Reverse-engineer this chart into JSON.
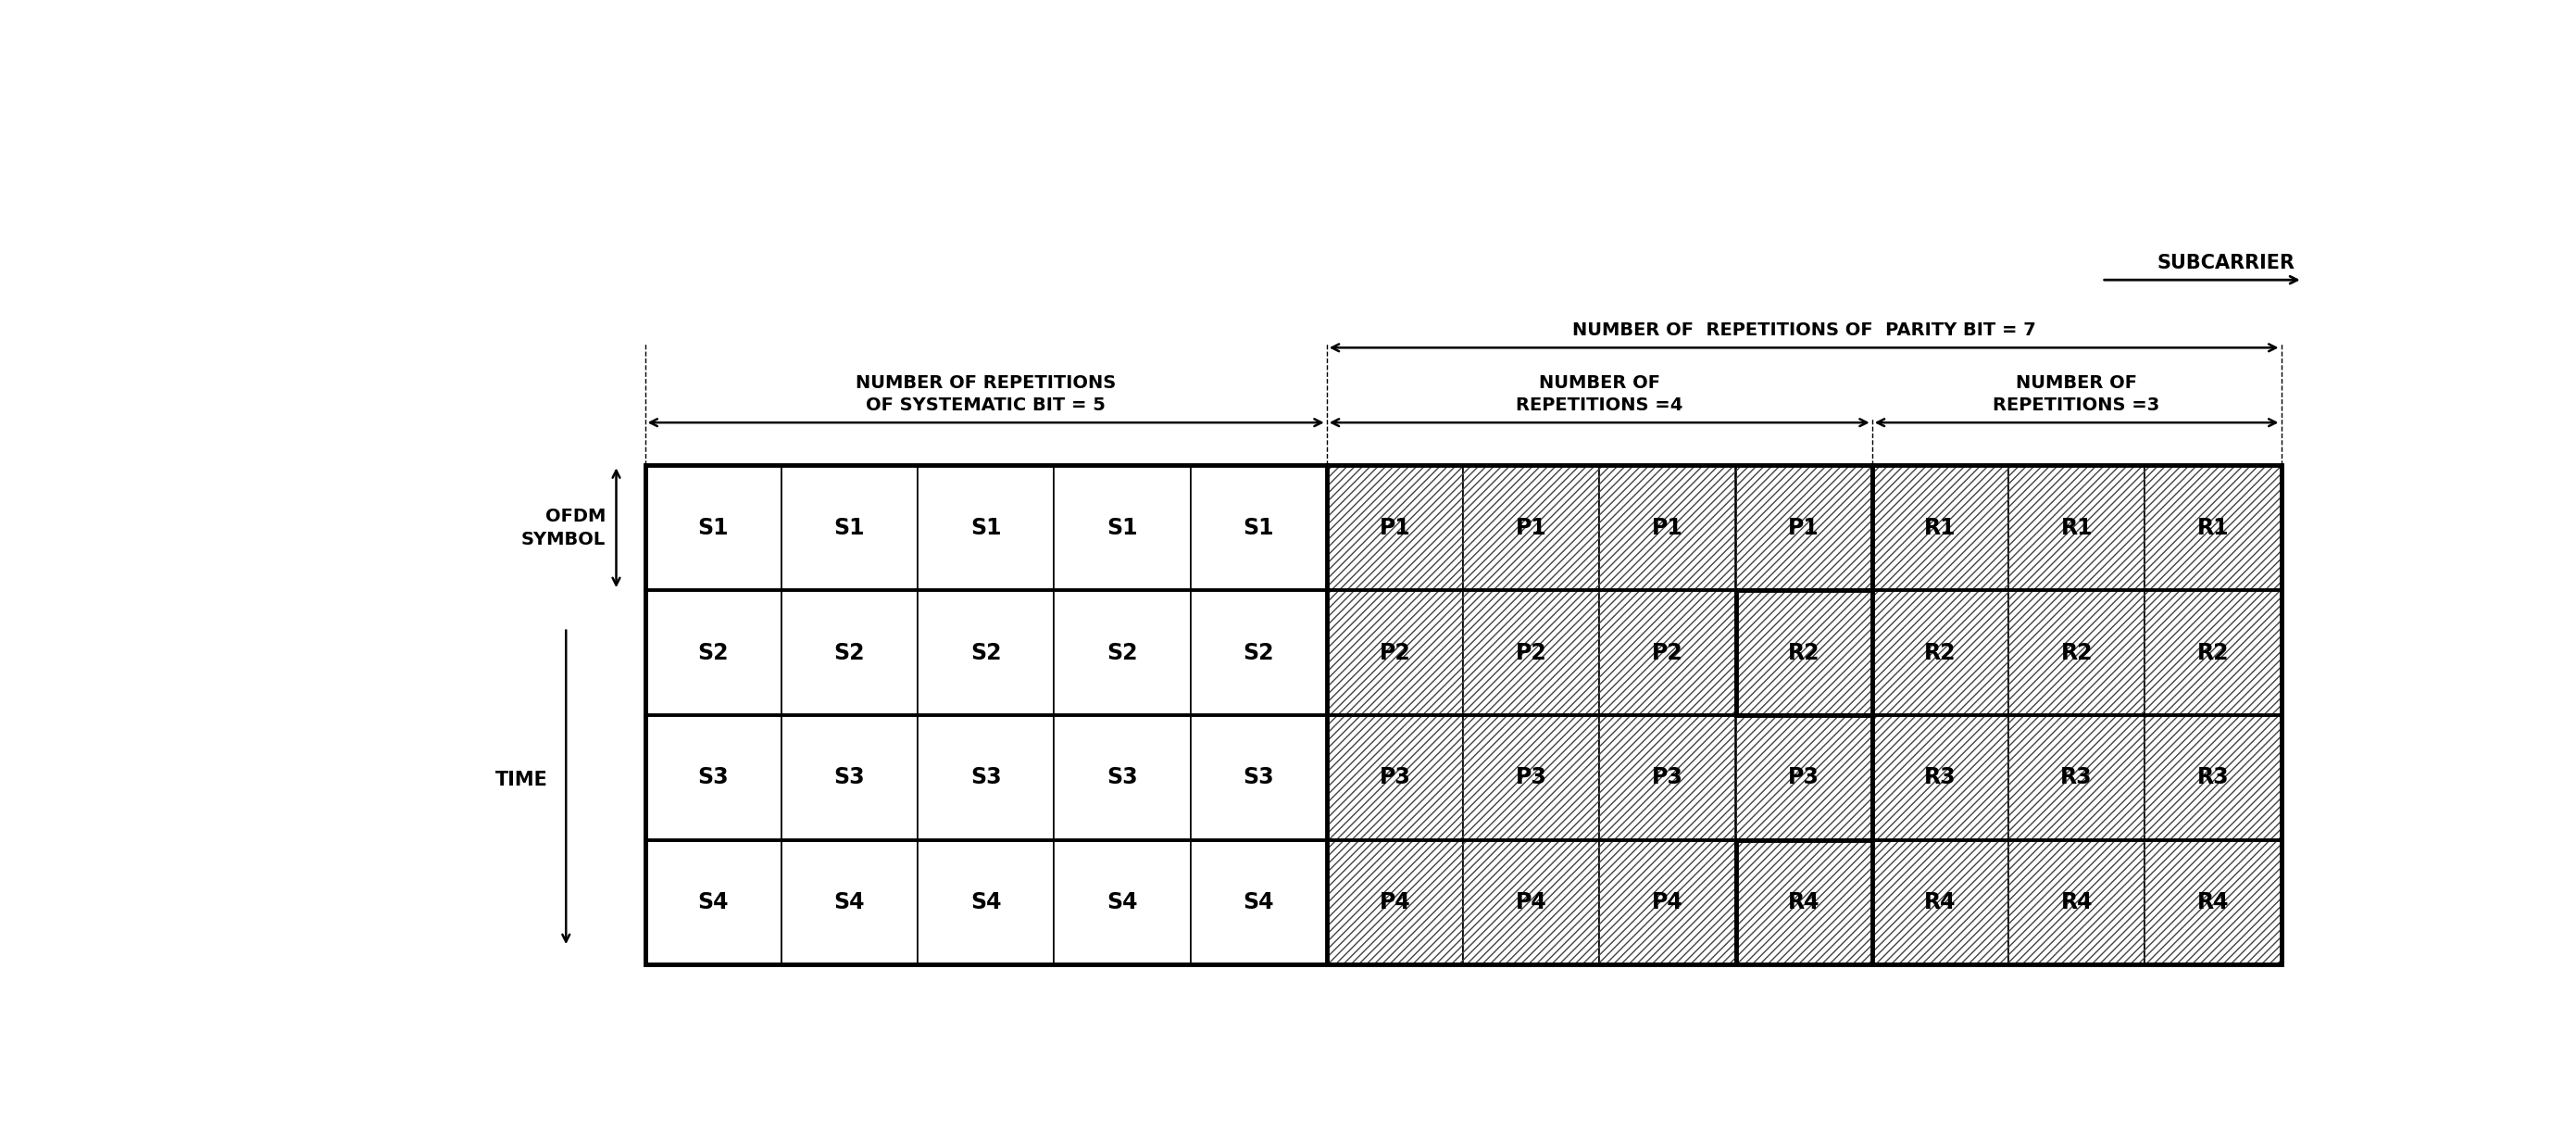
{
  "background_color": "#ffffff",
  "grid_rows": 4,
  "grid_cols": 12,
  "sys_cols": 5,
  "parity_cols": 4,
  "remainder_cols": 3,
  "label_sys": "NUMBER OF REPETITIONS\nOF SYSTEMATIC BIT = 5",
  "label_parity_total": "NUMBER OF  REPETITIONS OF  PARITY BIT = 7",
  "label_parity_4": "NUMBER OF\nREPETITIONS =4",
  "label_parity_3": "NUMBER OF\nREPETITIONS =3",
  "label_ofdm": "OFDM\nSYMBOL",
  "label_time": "TIME",
  "label_subcarrier": "SUBCARRIER",
  "hatch_pattern": "////",
  "hatch_color": "#444444",
  "thick_line_color": "#000000",
  "thin_line_color": "#000000",
  "text_color": "#000000",
  "pb": [
    4,
    3,
    4,
    3
  ]
}
